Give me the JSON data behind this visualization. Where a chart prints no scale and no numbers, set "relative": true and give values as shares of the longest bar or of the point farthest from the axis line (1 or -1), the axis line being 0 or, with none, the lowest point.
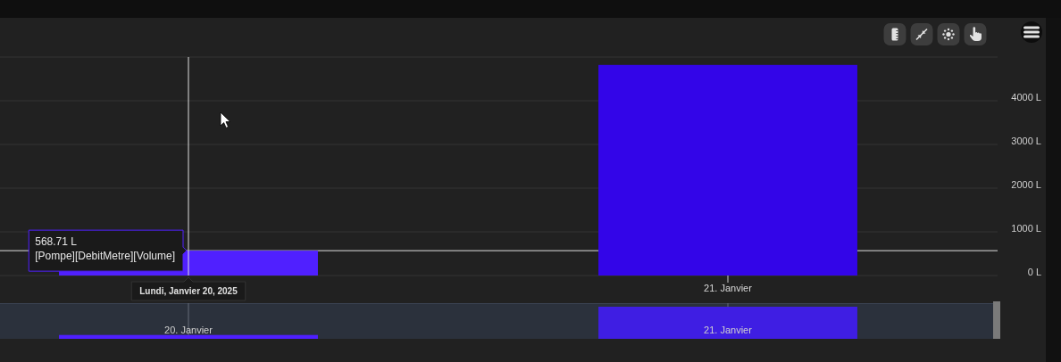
{
  "chart_data": [
    {
      "type": "bar",
      "categories": [
        "Lundi, Janvier 20, 2025",
        "21. Janvier"
      ],
      "values": [
        568.71,
        4820
      ],
      "value_labels": [
        "568.71 L",
        null
      ],
      "colors": [
        "#5020ff",
        "#3305e8"
      ],
      "ylim": [
        0,
        5000
      ],
      "yticks": [
        {
          "value": 0,
          "label": "0 L"
        },
        {
          "value": 1000,
          "label": "1000 L"
        },
        {
          "value": 2000,
          "label": "2000 L"
        },
        {
          "value": 3000,
          "label": "3000 L"
        },
        {
          "value": 4000,
          "label": "4000 L"
        },
        {
          "value": 5000,
          "label": null
        }
      ],
      "grid": "y",
      "ref_lines": [
        {
          "axis": "x",
          "value": "Lundi, Janvier 20, 2025",
          "color": "#e0e0e0"
        },
        {
          "axis": "y",
          "value": 568.71,
          "color": "#e0e0e0"
        }
      ],
      "annotations": [
        "[Pompe][DebitMetre][Volume]"
      ]
    },
    {
      "type": "bar",
      "categories": [
        "20. Janvier",
        "21. Janvier"
      ],
      "values": [
        0.12,
        1
      ],
      "relative": true,
      "colors": [
        "#4f1fff",
        "#3f1ee3"
      ],
      "grid": "x"
    }
  ]
}
